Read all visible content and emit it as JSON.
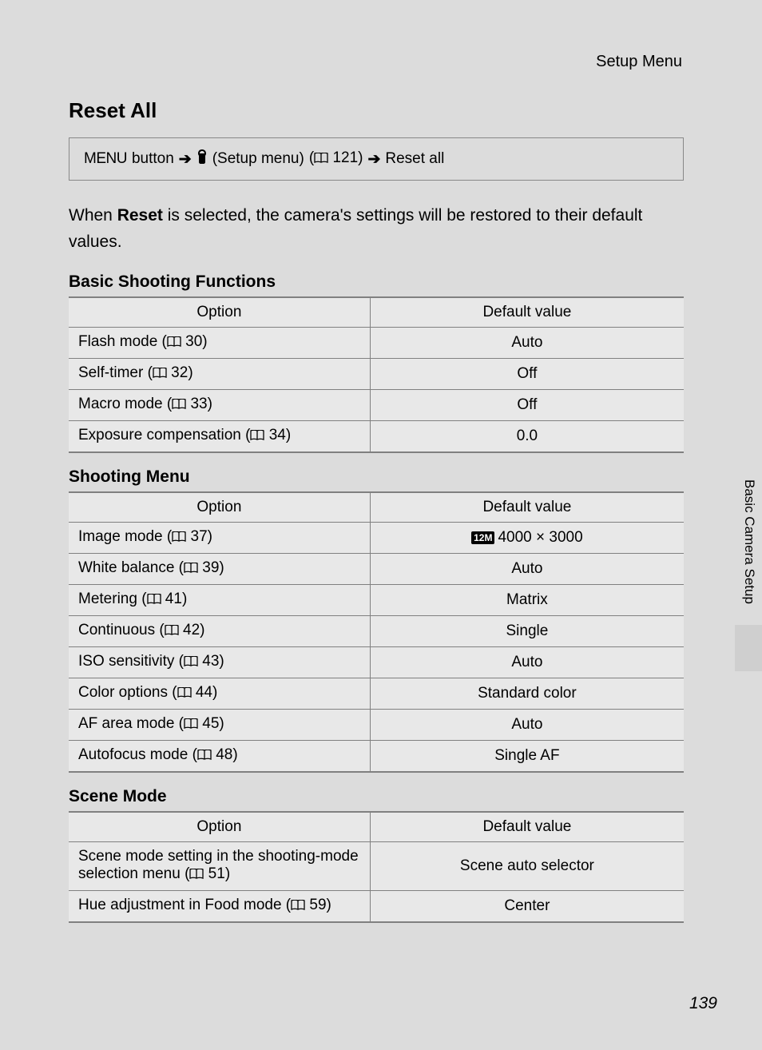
{
  "header": {
    "label": "Setup Menu"
  },
  "title": "Reset All",
  "breadcrumb": {
    "menu_word": "MENU",
    "button_word": "button",
    "setup_label": "(Setup menu)",
    "ref_page": "121",
    "tail": "Reset all"
  },
  "intro": {
    "before": "When ",
    "bold": "Reset",
    "after": " is selected, the camera's settings will be restored to their default values."
  },
  "tables": {
    "basic": {
      "title": "Basic Shooting Functions",
      "headers": {
        "option": "Option",
        "value": "Default value"
      },
      "rows": [
        {
          "label": "Flash mode",
          "page": "30",
          "value": "Auto"
        },
        {
          "label": "Self-timer",
          "page": "32",
          "value": "Off"
        },
        {
          "label": "Macro mode",
          "page": "33",
          "value": "Off"
        },
        {
          "label": "Exposure compensation",
          "page": "34",
          "value": "0.0"
        }
      ]
    },
    "shooting": {
      "title": "Shooting Menu",
      "headers": {
        "option": "Option",
        "value": "Default value"
      },
      "rows": [
        {
          "label": "Image mode",
          "page": "37",
          "value": "4000 × 3000",
          "badge": "12M"
        },
        {
          "label": "White balance",
          "page": "39",
          "value": "Auto"
        },
        {
          "label": "Metering",
          "page": "41",
          "value": "Matrix"
        },
        {
          "label": "Continuous",
          "page": "42",
          "value": "Single"
        },
        {
          "label": "ISO sensitivity",
          "page": "43",
          "value": "Auto"
        },
        {
          "label": "Color options",
          "page": "44",
          "value": "Standard color"
        },
        {
          "label": "AF area mode",
          "page": "45",
          "value": "Auto"
        },
        {
          "label": "Autofocus mode",
          "page": "48",
          "value": "Single AF"
        }
      ]
    },
    "scene": {
      "title": "Scene Mode",
      "headers": {
        "option": "Option",
        "value": "Default value"
      },
      "rows": [
        {
          "label": "Scene mode setting in the shooting-mode selection menu",
          "page": "51",
          "value": "Scene auto selector"
        },
        {
          "label": "Hue adjustment in Food mode",
          "page": "59",
          "value": "Center"
        }
      ]
    }
  },
  "side_tab": "Basic Camera Setup",
  "page_number": "139",
  "colors": {
    "page_bg": "#dcdcdc",
    "table_bg": "#e8e8e8",
    "border": "#808080"
  }
}
